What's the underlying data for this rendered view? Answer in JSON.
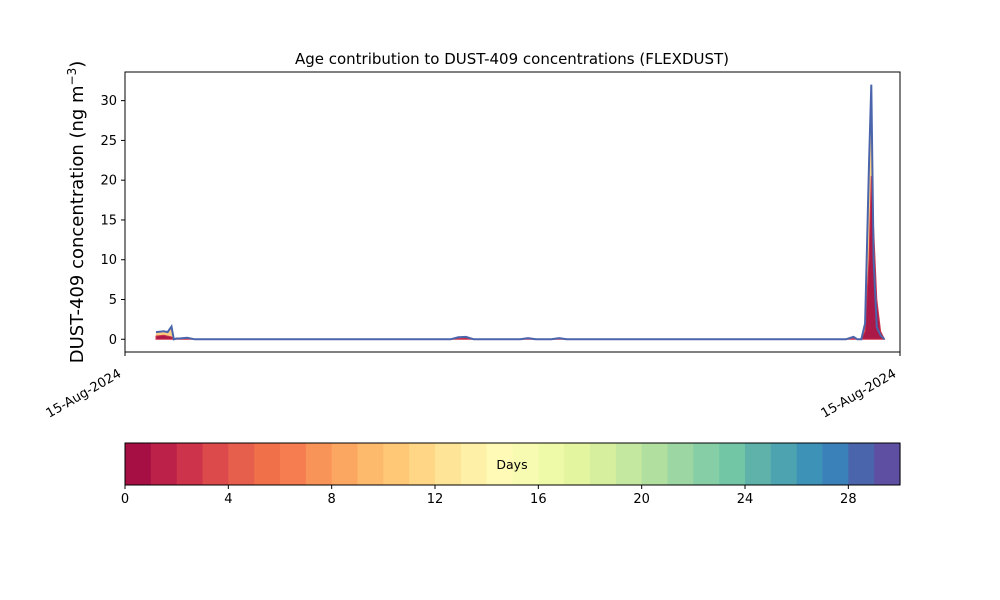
{
  "chart_data": {
    "type": "area",
    "title": "Age contribution to DUST-409 concentrations (FLEXDUST)",
    "ylabel_main": "DUST-409 concentration (ng m",
    "ylabel_sup": "−3",
    "ylabel_close": ")",
    "xlabel": "",
    "x_tick_labels": [
      "15-Aug-2024",
      "15-Aug-2024"
    ],
    "xlim": [
      0,
      100
    ],
    "ylim": [
      -1.6,
      33.6
    ],
    "y_ticks": [
      0,
      5,
      10,
      15,
      20,
      25,
      30
    ],
    "grid": false,
    "x": [
      0,
      4,
      5,
      5.5,
      6,
      6.3,
      6.6,
      7,
      8,
      9,
      10,
      42,
      43,
      44,
      45,
      51,
      52,
      53,
      55,
      56,
      57,
      61,
      93,
      94,
      94.5,
      95,
      95.5,
      96,
      96.3,
      96.6,
      97,
      97.5,
      98,
      98.3,
      98.6,
      100
    ],
    "total_values": [
      null,
      0.9,
      1.0,
      0.9,
      1.6,
      0.0,
      0.1,
      0.1,
      0.2,
      0.0,
      0.0,
      0.0,
      0.25,
      0.3,
      0.0,
      0.0,
      0.15,
      0.0,
      0.0,
      0.15,
      0.0,
      0.0,
      0.0,
      0.3,
      0.0,
      0.0,
      2.0,
      22.0,
      32.0,
      10.0,
      1.5,
      0.5,
      0.0,
      null,
      null,
      null
    ],
    "young_values": [
      null,
      0.4,
      0.5,
      0.4,
      0.3,
      0.0,
      0.05,
      0.05,
      0.1,
      0.0,
      0.0,
      0.0,
      0.1,
      0.2,
      0.0,
      0.0,
      0.05,
      0.0,
      0.0,
      0.05,
      0.0,
      0.0,
      0.0,
      0.1,
      0.0,
      0.0,
      1.0,
      10.0,
      20.5,
      14.0,
      5.0,
      1.0,
      0.0,
      null,
      null,
      null
    ],
    "colorbar": {
      "label": "Days",
      "range": [
        0,
        30
      ],
      "tick_values": [
        0,
        4,
        8,
        12,
        16,
        20,
        24,
        28
      ],
      "tick_labels": [
        "0",
        "4",
        "8",
        "12",
        "16",
        "20",
        "24",
        "28"
      ],
      "colors": [
        "#a50f43",
        "#bb2149",
        "#cd334a",
        "#dc4a4c",
        "#e65e4c",
        "#f0704a",
        "#f57d4f",
        "#f89457",
        "#fba761",
        "#fdba6c",
        "#fec877",
        "#fed685",
        "#fee496",
        "#fff0a7",
        "#fffbb6",
        "#f7fbb1",
        "#effaa9",
        "#e4f59f",
        "#d5ef9e",
        "#c4e89f",
        "#b0df9f",
        "#9cd6a3",
        "#86cea5",
        "#72c6a6",
        "#5eb2aa",
        "#4ea3b0",
        "#3d92b7",
        "#3a80b9",
        "#4a65ab",
        "#5e4fa2"
      ]
    }
  }
}
